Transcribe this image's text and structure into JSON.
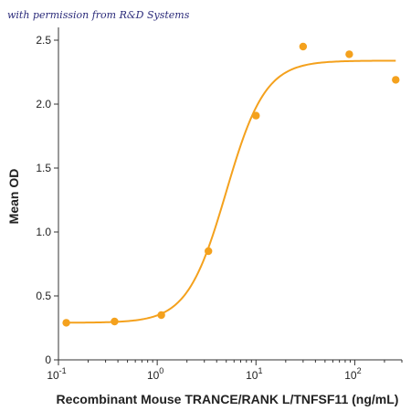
{
  "watermark": "with permission from R&D Systems",
  "colors": {
    "series": "#f4a11d",
    "axis": "#333333",
    "watermark": "#2b2b7a"
  },
  "chart_data": {
    "type": "scatter",
    "xlabel": "Recombinant Mouse TRANCE/RANK L/TNFSF11 (ng/mL)",
    "ylabel": "Mean OD",
    "xscale": "log",
    "xlim": [
      0.1,
      300
    ],
    "ylim": [
      0,
      2.6
    ],
    "yticks": [
      "0",
      "0.5",
      "1.0",
      "1.5",
      "2.0",
      "2.5"
    ],
    "xticks": [
      {
        "base": "10",
        "exp": "-1"
      },
      {
        "base": "10",
        "exp": "0"
      },
      {
        "base": "10",
        "exp": "1"
      },
      {
        "base": "10",
        "exp": "2"
      }
    ],
    "grid": false,
    "series": [
      {
        "points": [
          {
            "x": 0.12,
            "y": 0.29
          },
          {
            "x": 0.37,
            "y": 0.3
          },
          {
            "x": 1.1,
            "y": 0.35
          },
          {
            "x": 3.3,
            "y": 0.85
          },
          {
            "x": 10,
            "y": 1.91
          },
          {
            "x": 30,
            "y": 2.45
          },
          {
            "x": 88,
            "y": 2.39
          },
          {
            "x": 260,
            "y": 2.19
          }
        ],
        "fit": {
          "model": "4PL",
          "bottom": 0.29,
          "top": 2.34,
          "ec50": 5.0,
          "hill": 2.2
        }
      }
    ]
  }
}
